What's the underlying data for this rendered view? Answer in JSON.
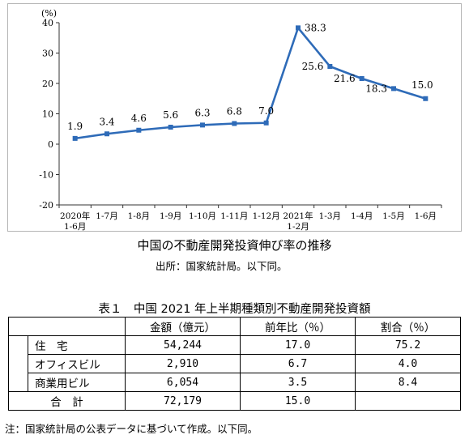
{
  "chart_data": {
    "type": "line",
    "unit_label": "(%)",
    "ylim": [
      -20,
      40
    ],
    "yticks": [
      "40",
      "30",
      "20",
      "10",
      "0",
      "-10",
      "-20"
    ],
    "categories": [
      [
        "2020年",
        "1-6月"
      ],
      [
        "1-7月"
      ],
      [
        "1-8月"
      ],
      [
        "1-9月"
      ],
      [
        "1-10月"
      ],
      [
        "1-11月"
      ],
      [
        "1-12月"
      ],
      [
        "2021年",
        "1-2月"
      ],
      [
        "1-3月"
      ],
      [
        "1-4月"
      ],
      [
        "1-5月"
      ],
      [
        "1-6月"
      ]
    ],
    "values": [
      1.9,
      3.4,
      4.6,
      5.6,
      6.3,
      6.8,
      7.0,
      38.3,
      25.6,
      21.6,
      18.3,
      15.0
    ],
    "data_labels": [
      "1.9",
      "3.4",
      "4.6",
      "5.6",
      "6.3",
      "6.8",
      "7.0",
      "38.3",
      "25.6",
      "21.6",
      "18.3",
      "15.0"
    ],
    "line_color": "#2e6bb8",
    "grid": false
  },
  "chart_title": "中国の不動産開発投資伸び率の推移",
  "chart_source": "出所：国家統計局。以下同。",
  "table": {
    "title": "表１　中国 2021 年上半期種類別不動産開発投資額",
    "headers": [
      "",
      "金額（億元）",
      "前年比（％）",
      "割合（％）"
    ],
    "rows": [
      {
        "label": "住　宅",
        "amount": "54,244",
        "yoy": "17.0",
        "share": "75.2"
      },
      {
        "label": "オフィスビル",
        "amount": "2,910",
        "yoy": "6.7",
        "share": "4.0"
      },
      {
        "label": "商業用ビル",
        "amount": "6,054",
        "yoy": "3.5",
        "share": "8.4"
      }
    ],
    "total": {
      "label": "合　計",
      "amount": "72,179",
      "yoy": "15.0",
      "share": ""
    }
  },
  "footnote": "注：国家統計局の公表データに基づいて作成。以下同。"
}
